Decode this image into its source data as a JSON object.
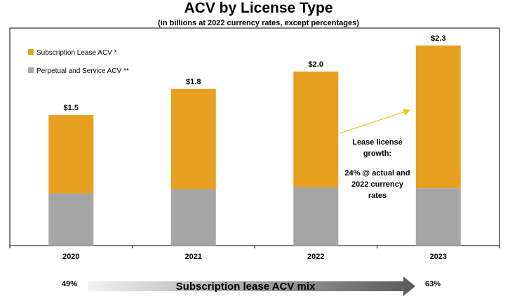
{
  "chart_data": {
    "type": "bar",
    "stacked": true,
    "title": "ACV by License Type",
    "subtitle": "(in billions at 2022 currency rates, except percentages)",
    "categories": [
      "2020",
      "2021",
      "2022",
      "2023"
    ],
    "series": [
      {
        "name": "Perpetual and Service ACV **",
        "values": [
          0.6,
          0.65,
          0.67,
          0.66
        ]
      },
      {
        "name": "Subscription Lease ACV *",
        "values": [
          0.9,
          1.15,
          1.33,
          1.64
        ]
      }
    ],
    "totals": [
      1.5,
      1.8,
      2.0,
      2.3
    ],
    "total_labels": [
      "$1.5",
      "$1.8",
      "$2.0",
      "$2.3"
    ],
    "ylim": [
      0,
      2.5
    ],
    "grid": false,
    "legend_position": "top-left"
  },
  "colors": {
    "subscription": "#E8A020",
    "perpetual": "#A6A6A6",
    "annotation_arrow": "#F5C518",
    "axis": "#000000"
  },
  "annotation": {
    "line1": "Lease license",
    "line2": "growth:",
    "line3": "24% @ actual and",
    "line4": "2022 currency",
    "line5": "rates"
  },
  "mix": {
    "start_pct": "49%",
    "end_pct": "63%",
    "label": "Subscription lease ACV mix"
  }
}
